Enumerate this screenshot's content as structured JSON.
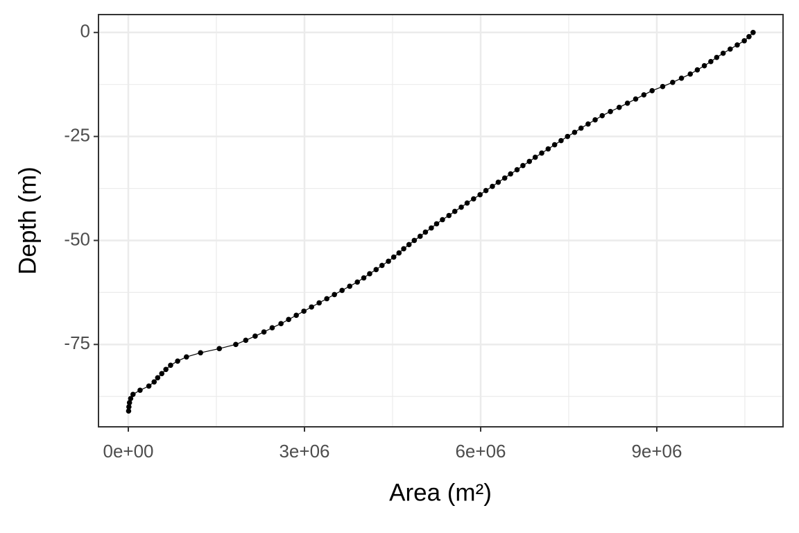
{
  "chart_data": {
    "type": "line",
    "x_label": "Area (m²)",
    "y_label": "Depth (m)",
    "x": [
      10640000,
      10570000,
      10490000,
      10370000,
      10250000,
      10130000,
      10020000,
      9920000,
      9810000,
      9690000,
      9570000,
      9420000,
      9270000,
      9100000,
      8920000,
      8780000,
      8640000,
      8500000,
      8360000,
      8210000,
      8070000,
      7950000,
      7830000,
      7710000,
      7600000,
      7480000,
      7370000,
      7260000,
      7150000,
      7040000,
      6930000,
      6830000,
      6720000,
      6620000,
      6510000,
      6410000,
      6300000,
      6200000,
      6090000,
      5990000,
      5880000,
      5770000,
      5670000,
      5560000,
      5460000,
      5350000,
      5250000,
      5160000,
      5060000,
      4970000,
      4870000,
      4780000,
      4690000,
      4610000,
      4520000,
      4430000,
      4320000,
      4220000,
      4110000,
      4010000,
      3900000,
      3770000,
      3640000,
      3510000,
      3380000,
      3250000,
      3120000,
      2990000,
      2860000,
      2730000,
      2600000,
      2450000,
      2310000,
      2160000,
      2000000,
      1830000,
      1550000,
      1230000,
      990000,
      840000,
      720000,
      640000,
      570000,
      500000,
      440000,
      350000,
      200000,
      80000,
      40000,
      20000,
      10000,
      5000
    ],
    "values": [
      0,
      -1,
      -2,
      -3,
      -4,
      -5,
      -6,
      -7,
      -8,
      -9,
      -10,
      -11,
      -12,
      -13,
      -14,
      -15,
      -16,
      -17,
      -18,
      -19,
      -20,
      -21,
      -22,
      -23,
      -24,
      -25,
      -26,
      -27,
      -28,
      -29,
      -30,
      -31,
      -32,
      -33,
      -34,
      -35,
      -36,
      -37,
      -38,
      -39,
      -40,
      -41,
      -42,
      -43,
      -44,
      -45,
      -46,
      -47,
      -48,
      -49,
      -50,
      -51,
      -52,
      -53,
      -54,
      -55,
      -56,
      -57,
      -58,
      -59,
      -60,
      -61,
      -62,
      -63,
      -64,
      -65,
      -66,
      -67,
      -68,
      -69,
      -70,
      -71,
      -72,
      -73,
      -74,
      -75,
      -76,
      -77,
      -78,
      -79,
      -80,
      -81,
      -82,
      -83,
      -84,
      -85,
      -86,
      -87,
      -88,
      -89,
      -90,
      -91
    ],
    "color": "#000000",
    "xlim": [
      -508000,
      11150000
    ],
    "ylim": [
      -94.8,
      4.3
    ],
    "xticks": [
      {
        "value": 0,
        "label": "0e+00"
      },
      {
        "value": 3000000,
        "label": "3e+06"
      },
      {
        "value": 6000000,
        "label": "6e+06"
      },
      {
        "value": 9000000,
        "label": "9e+06"
      }
    ],
    "yticks": [
      0,
      -25,
      -50,
      -75
    ],
    "x_minor_ticks": [
      1500000,
      4500000,
      7500000,
      10500000
    ],
    "y_minor_ticks": [
      -12.5,
      -37.5,
      -62.5,
      -87.5
    ],
    "grid": true
  }
}
